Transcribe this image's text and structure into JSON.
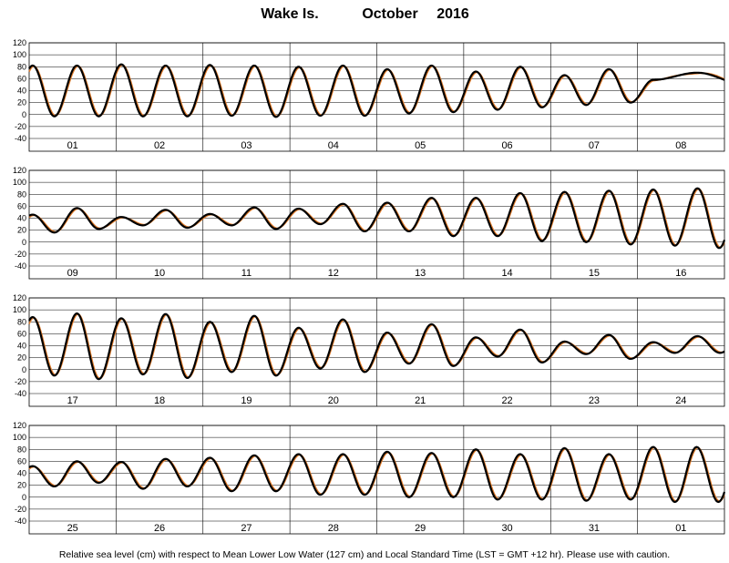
{
  "chart_data": {
    "type": "line",
    "station": "Wake Is.",
    "month_label": "October",
    "year_label": "2016",
    "ylabel": "",
    "xlabel": "",
    "ylim": [
      -40,
      120
    ],
    "yticks": [
      -40,
      -20,
      0,
      20,
      40,
      60,
      80,
      100,
      120
    ],
    "grid": true,
    "footnote": "Relative sea level (cm) with respect to Mean Lower Low Water (127 cm) and Local Standard Time (LST = GMT +12 hr). Please use with caution.",
    "series_colors": {
      "observed": "#000000",
      "predicted": "#e07b2a"
    },
    "panels": [
      {
        "days": [
          "01",
          "02",
          "03",
          "04",
          "05",
          "06",
          "07",
          "08"
        ],
        "highs": [
          82,
          82,
          84,
          82,
          83,
          82,
          80,
          82,
          76,
          82,
          72,
          80,
          66,
          76,
          58,
          70,
          52,
          64
        ],
        "lows": [
          -3,
          -3,
          -3,
          -3,
          -2,
          -4,
          -2,
          -2,
          2,
          4,
          8,
          12,
          16,
          20
        ]
      },
      {
        "days": [
          "09",
          "10",
          "11",
          "12",
          "13",
          "14",
          "15",
          "16"
        ],
        "highs": [
          46,
          57,
          42,
          54,
          47,
          58,
          56,
          64,
          66,
          74,
          74,
          82,
          84,
          86,
          88,
          90
        ],
        "lows": [
          16,
          22,
          28,
          24,
          28,
          22,
          30,
          18,
          18,
          10,
          10,
          2,
          0,
          -4,
          -6,
          -10
        ]
      },
      {
        "days": [
          "17",
          "18",
          "19",
          "20",
          "21",
          "22",
          "23",
          "24"
        ],
        "highs": [
          88,
          94,
          86,
          93,
          80,
          90,
          70,
          84,
          62,
          76,
          54,
          67,
          47,
          58,
          46,
          56
        ],
        "lows": [
          -10,
          -16,
          -8,
          -14,
          -4,
          -10,
          2,
          -4,
          10,
          6,
          22,
          12,
          26,
          18,
          28
        ]
      },
      {
        "days": [
          "25",
          "26",
          "27",
          "28",
          "29",
          "30",
          "31",
          "01"
        ],
        "highs": [
          52,
          60,
          59,
          64,
          66,
          70,
          72,
          72,
          76,
          74,
          80,
          72,
          82,
          72,
          84
        ],
        "lows": [
          18,
          24,
          14,
          18,
          10,
          10,
          4,
          4,
          0,
          0,
          -4,
          -4,
          -6,
          -4,
          -8
        ]
      }
    ]
  }
}
